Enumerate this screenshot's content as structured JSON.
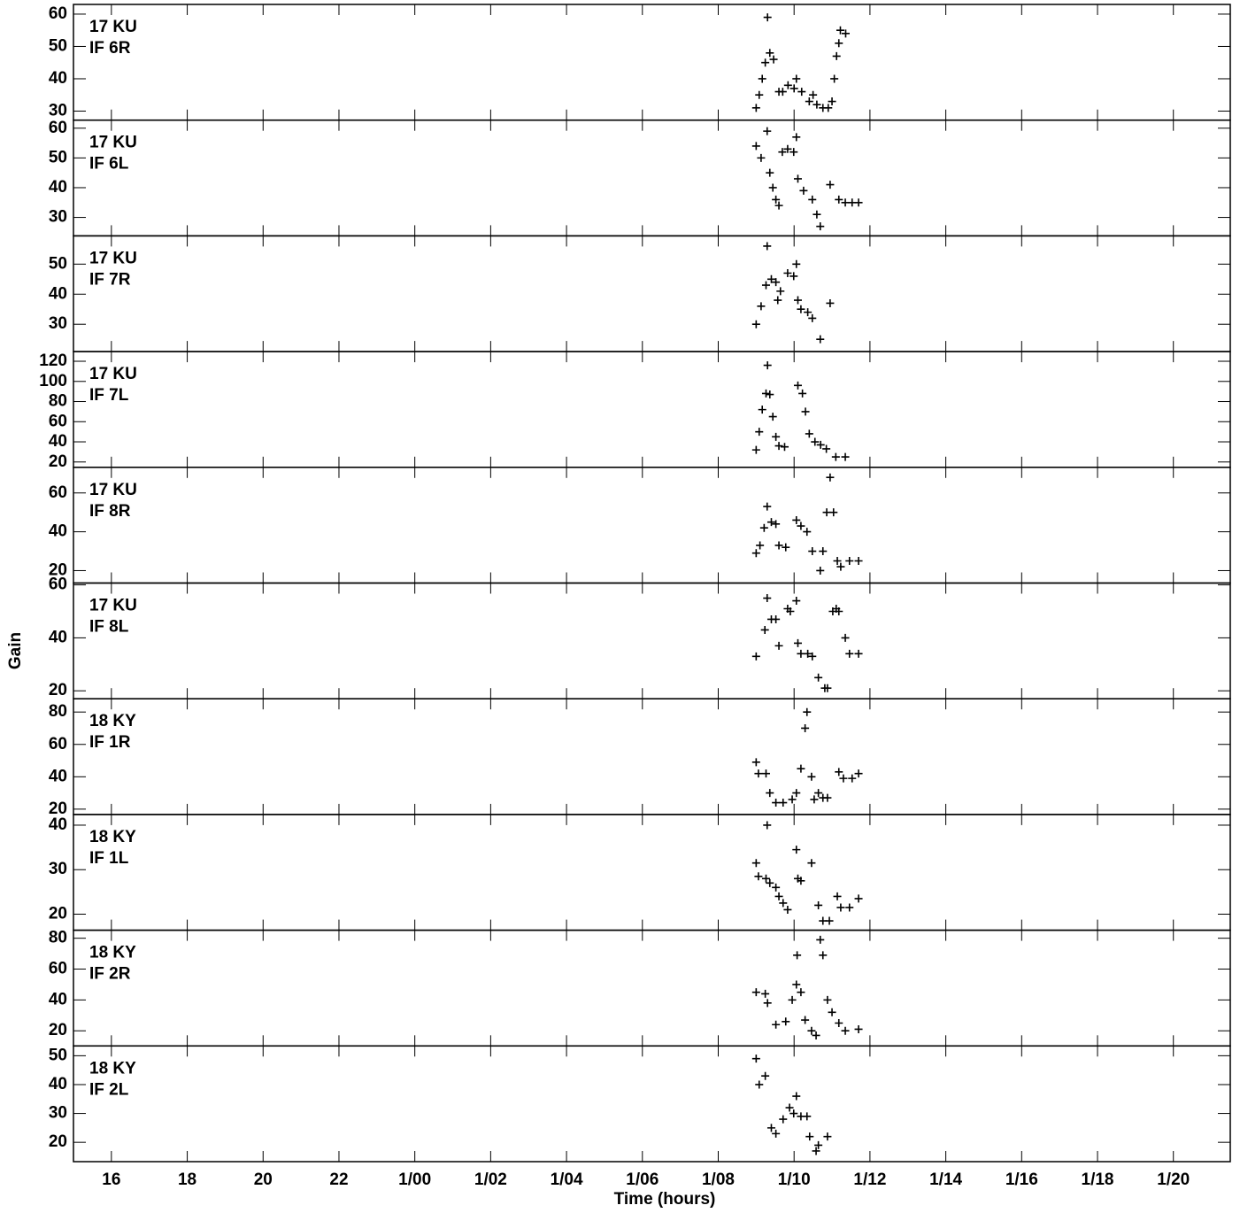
{
  "chart_data": [
    {
      "type": "scatter",
      "labels": [
        "17 KU",
        "IF 6R"
      ],
      "ylim": [
        27.2,
        63
      ],
      "yticks": [
        30,
        40,
        50,
        60
      ],
      "x": [
        33.0,
        33.08,
        33.16,
        33.24,
        33.3,
        33.36,
        33.46,
        33.6,
        33.7,
        33.84,
        34.0,
        34.06,
        34.2,
        34.4,
        34.5,
        34.6,
        34.76,
        34.9,
        35.0,
        35.06,
        35.12,
        35.18,
        35.22,
        35.36
      ],
      "values": [
        31,
        35,
        40,
        45,
        59,
        48,
        46,
        36,
        36,
        38,
        37,
        40,
        36,
        33,
        35,
        32,
        31,
        31,
        33,
        40,
        47,
        51,
        55,
        54
      ]
    },
    {
      "type": "scatter",
      "labels": [
        "17 KU",
        "IF 6L"
      ],
      "ylim": [
        23.8,
        62.7
      ],
      "yticks": [
        30,
        40,
        50,
        60
      ],
      "x": [
        33.0,
        33.13,
        33.29,
        33.36,
        33.44,
        33.52,
        33.6,
        33.69,
        33.83,
        33.99,
        34.06,
        34.1,
        34.25,
        34.48,
        34.6,
        34.69,
        34.95,
        35.18,
        35.35,
        35.53,
        35.7
      ],
      "values": [
        54,
        50,
        59,
        45,
        40,
        36,
        34,
        52,
        53,
        52,
        57,
        43,
        39,
        36,
        31,
        27,
        41,
        36,
        35,
        35,
        35
      ]
    },
    {
      "type": "scatter",
      "labels": [
        "17 KU",
        "IF 7R"
      ],
      "ylim": [
        20.9,
        59.4
      ],
      "yticks": [
        30,
        40,
        50
      ],
      "x": [
        33.0,
        33.13,
        33.26,
        33.29,
        33.4,
        33.52,
        33.57,
        33.64,
        33.83,
        33.99,
        34.06,
        34.1,
        34.18,
        34.36,
        34.48,
        34.69,
        34.95
      ],
      "values": [
        30,
        36,
        43,
        56,
        45,
        44,
        38,
        41,
        47,
        46,
        50,
        38,
        35,
        34,
        32,
        25,
        37
      ]
    },
    {
      "type": "scatter",
      "labels": [
        "17 KU",
        "IF 7L"
      ],
      "ylim": [
        14.7,
        129.6
      ],
      "yticks": [
        20,
        40,
        60,
        80,
        100,
        120
      ],
      "x": [
        33.0,
        33.08,
        33.16,
        33.26,
        33.3,
        33.36,
        33.44,
        33.52,
        33.6,
        33.75,
        34.1,
        34.22,
        34.3,
        34.4,
        34.55,
        34.7,
        34.85,
        35.1,
        35.35
      ],
      "values": [
        32,
        50,
        72,
        88,
        116,
        87,
        65,
        45,
        36,
        35,
        96,
        88,
        70,
        48,
        40,
        37,
        33,
        25,
        25
      ]
    },
    {
      "type": "scatter",
      "labels": [
        "17 KU",
        "IF 8R"
      ],
      "ylim": [
        13.6,
        73.2
      ],
      "yticks": [
        20,
        40,
        60
      ],
      "x": [
        33.0,
        33.1,
        33.21,
        33.29,
        33.4,
        33.52,
        33.6,
        33.78,
        34.06,
        34.18,
        34.34,
        34.48,
        34.69,
        34.76,
        34.86,
        34.95,
        35.04,
        35.14,
        35.23,
        35.46,
        35.7
      ],
      "values": [
        29,
        33,
        42,
        53,
        45,
        44,
        33,
        32,
        46,
        43,
        40,
        30,
        20,
        30,
        50,
        68,
        50,
        25,
        22,
        25,
        25
      ]
    },
    {
      "type": "scatter",
      "labels": [
        "17 KU",
        "IF 8L"
      ],
      "ylim": [
        17,
        60.7
      ],
      "yticks": [
        20,
        40,
        60
      ],
      "x": [
        33.0,
        33.23,
        33.29,
        33.4,
        33.52,
        33.6,
        33.83,
        33.9,
        34.06,
        34.1,
        34.18,
        34.36,
        34.48,
        34.64,
        34.81,
        34.88,
        35.02,
        35.11,
        35.18,
        35.35,
        35.46,
        35.7
      ],
      "values": [
        33,
        43,
        55,
        47,
        47,
        37,
        51,
        50,
        54,
        38,
        34,
        34,
        33,
        25,
        21,
        21,
        50,
        51,
        50,
        40,
        34,
        34
      ]
    },
    {
      "type": "scatter",
      "labels": [
        "18 KY",
        "IF 1R"
      ],
      "ylim": [
        16.7,
        88.2
      ],
      "yticks": [
        20,
        40,
        60,
        80
      ],
      "x": [
        33.0,
        33.06,
        33.26,
        33.36,
        33.52,
        33.71,
        33.95,
        34.06,
        34.18,
        34.29,
        34.34,
        34.46,
        34.53,
        34.64,
        34.76,
        34.88,
        35.18,
        35.3,
        35.53,
        35.7
      ],
      "values": [
        49,
        42,
        42,
        30,
        24,
        24,
        26,
        30,
        45,
        70,
        80,
        40,
        26,
        30,
        27,
        27,
        43,
        39,
        39,
        42
      ]
    },
    {
      "type": "scatter",
      "labels": [
        "18 KY",
        "IF 1L"
      ],
      "ylim": [
        16.4,
        42.4
      ],
      "yticks": [
        20,
        30,
        40
      ],
      "x": [
        33.0,
        33.06,
        33.26,
        33.29,
        33.36,
        33.52,
        33.6,
        33.71,
        33.83,
        34.06,
        34.1,
        34.18,
        34.46,
        34.64,
        34.76,
        34.93,
        35.14,
        35.23,
        35.46,
        35.7
      ],
      "values": [
        31.5,
        28.5,
        28,
        40,
        27,
        26,
        24,
        22.5,
        21,
        34.5,
        28,
        27.5,
        31.5,
        22,
        18.5,
        18.5,
        24,
        21.5,
        21.5,
        23.5
      ]
    },
    {
      "type": "scatter",
      "labels": [
        "18 KY",
        "IF 2R"
      ],
      "ylim": [
        10.2,
        85.2
      ],
      "yticks": [
        20,
        40,
        60,
        80
      ],
      "x": [
        33.0,
        33.24,
        33.3,
        33.52,
        33.78,
        33.95,
        34.06,
        34.08,
        34.18,
        34.29,
        34.46,
        34.58,
        34.69,
        34.76,
        34.88,
        35.0,
        35.18,
        35.35,
        35.7
      ],
      "values": [
        45,
        44,
        38,
        24,
        26,
        40,
        50,
        69,
        45,
        27,
        20,
        17,
        79,
        69,
        40,
        32,
        25,
        20,
        21
      ]
    },
    {
      "type": "scatter",
      "labels": [
        "18 KY",
        "IF 2L"
      ],
      "ylim": [
        13.3,
        53.4
      ],
      "yticks": [
        20,
        30,
        40,
        50
      ],
      "x": [
        33.0,
        33.08,
        33.24,
        33.4,
        33.52,
        33.71,
        33.88,
        33.99,
        34.06,
        34.18,
        34.34,
        34.41,
        34.58,
        34.64,
        34.88
      ],
      "values": [
        49,
        40,
        43,
        25,
        23,
        28,
        32,
        30,
        36,
        29,
        29,
        22,
        17,
        19,
        22
      ],
      "xlabel": "Time (hours)",
      "ylabel": "Gain",
      "xlim": [
        15,
        45.5
      ],
      "xticks": [
        16,
        18,
        20,
        22,
        {
          "value": 24,
          "label": "1/00"
        },
        {
          "value": 26,
          "label": "1/02"
        },
        {
          "value": 28,
          "label": "1/04"
        },
        {
          "value": 30,
          "label": "1/06"
        },
        {
          "value": 32,
          "label": "1/08"
        },
        {
          "value": 34,
          "label": "1/10"
        },
        {
          "value": 36,
          "label": "1/12"
        },
        {
          "value": 38,
          "label": "1/14"
        },
        {
          "value": 40,
          "label": "1/16"
        },
        {
          "value": 42,
          "label": "1/18"
        },
        {
          "value": 44,
          "label": "1/20"
        }
      ]
    }
  ]
}
